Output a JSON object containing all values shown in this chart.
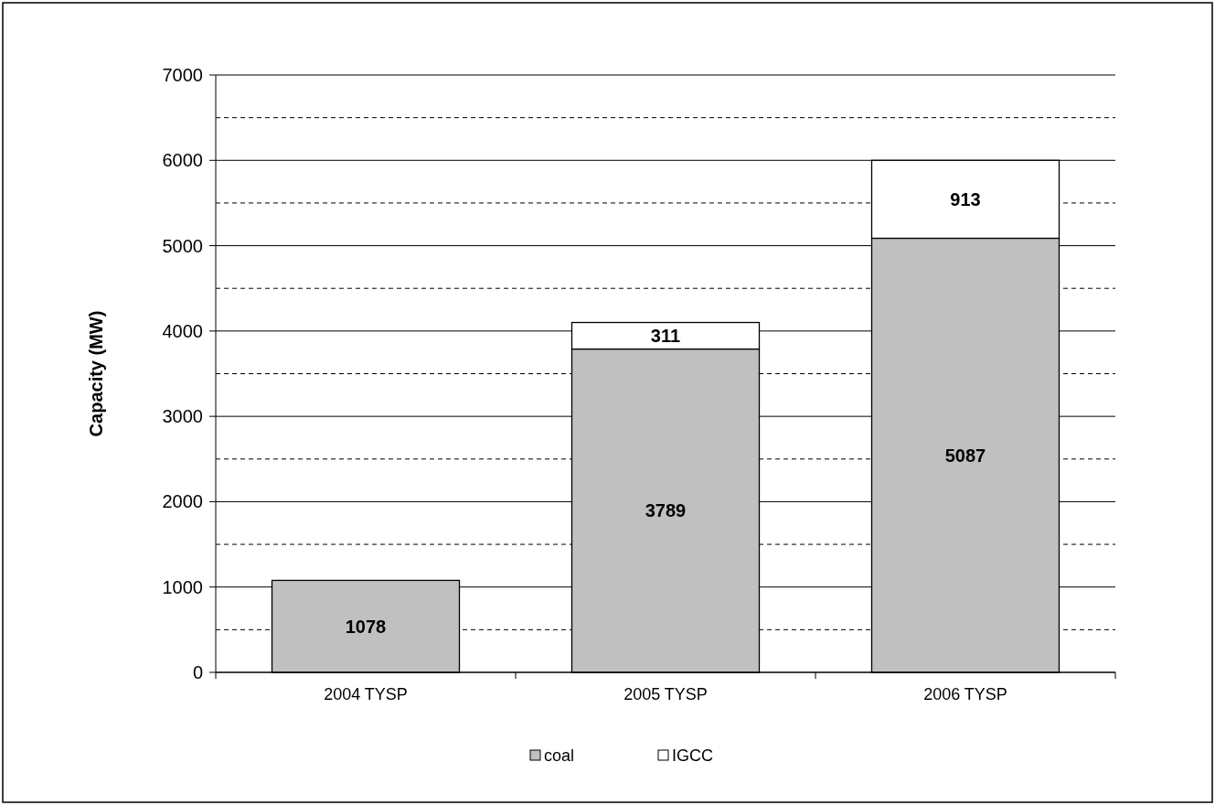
{
  "chart_data": {
    "type": "bar",
    "stacked": true,
    "ylabel": "Capacity (MW)",
    "categories": [
      "2004 TYSP",
      "2005 TYSP",
      "2006 TYSP"
    ],
    "series": [
      {
        "name": "coal",
        "color": "#c0c0c0",
        "values": [
          1078,
          3789,
          5087
        ]
      },
      {
        "name": "IGCC",
        "color": "#ffffff",
        "values": [
          null,
          311,
          913
        ]
      }
    ],
    "ylim": [
      0,
      7000
    ],
    "yticks": [
      0,
      {
        "value": 500,
        "label": null
      },
      1000,
      {
        "value": 1500,
        "label": null
      },
      2000,
      {
        "value": 2500,
        "label": null
      },
      3000,
      {
        "value": 3500,
        "label": null
      },
      4000,
      {
        "value": 4500,
        "label": null
      },
      5000,
      {
        "value": 5500,
        "label": null
      },
      6000,
      {
        "value": 6500,
        "label": null
      },
      7000
    ],
    "grid": "y",
    "data_labels": true,
    "legend": "bottom"
  }
}
